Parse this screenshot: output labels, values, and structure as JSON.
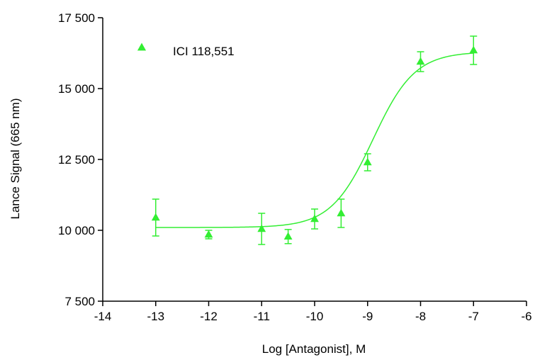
{
  "chart_data": {
    "type": "scatter",
    "title": "",
    "xlabel": "Log [Antagonist], M",
    "ylabel": "Lance Signal (665 nm)",
    "xlim": [
      -14,
      -6
    ],
    "ylim": [
      7500,
      17500
    ],
    "x_ticks": [
      {
        "value": -14,
        "label": "-14"
      },
      {
        "value": -13,
        "label": "-13"
      },
      {
        "value": -12,
        "label": "-12"
      },
      {
        "value": -11,
        "label": "-11"
      },
      {
        "value": -10,
        "label": "-10"
      },
      {
        "value": -9,
        "label": "-9"
      },
      {
        "value": -8,
        "label": "-8"
      },
      {
        "value": -7,
        "label": "-7"
      },
      {
        "value": -6,
        "label": "-6"
      }
    ],
    "y_ticks": [
      {
        "value": 7500,
        "label": "7 500"
      },
      {
        "value": 10000,
        "label": "10 000"
      },
      {
        "value": 12500,
        "label": "12 500"
      },
      {
        "value": 15000,
        "label": "15 000"
      },
      {
        "value": 17500,
        "label": "17 500"
      }
    ],
    "grid": false,
    "legend_position": "top-left",
    "series": [
      {
        "name": "ICI 118,551",
        "color": "#33ee33",
        "marker": "triangle",
        "points": [
          {
            "x": -13,
            "y": 10450,
            "err": 650
          },
          {
            "x": -12,
            "y": 9850,
            "err": 150
          },
          {
            "x": -11,
            "y": 10050,
            "err": 550
          },
          {
            "x": -10.5,
            "y": 9780,
            "err": 250
          },
          {
            "x": -10,
            "y": 10400,
            "err": 350
          },
          {
            "x": -9.5,
            "y": 10600,
            "err": 500
          },
          {
            "x": -9,
            "y": 12400,
            "err": 300
          },
          {
            "x": -8,
            "y": 15950,
            "err": 350
          },
          {
            "x": -7,
            "y": 16350,
            "err": 500
          }
        ],
        "fit": {
          "model": "sigmoidal dose-response",
          "bottom": 10100,
          "top": 16300,
          "logEC50": -8.9,
          "hill": 1.1,
          "x_start": -13,
          "x_end": -7
        }
      }
    ]
  }
}
